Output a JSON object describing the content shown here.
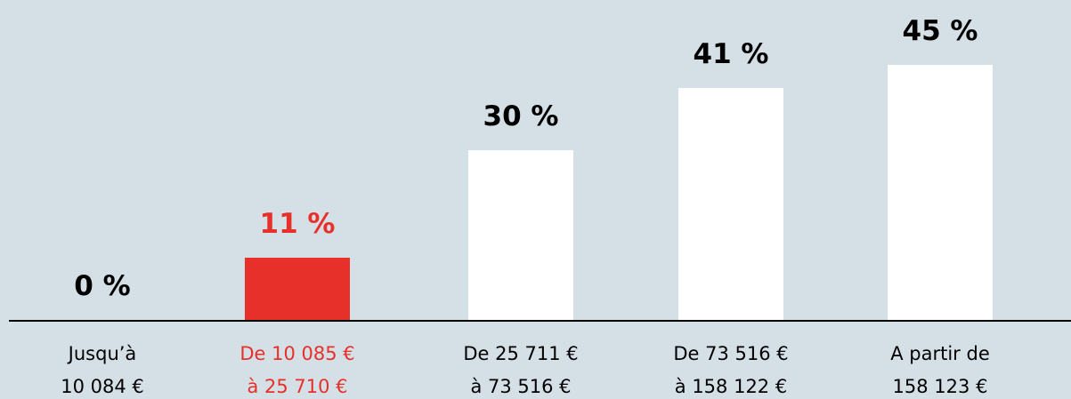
{
  "chart_data": {
    "type": "bar",
    "categories": [
      "Jusqu’à\n10 084 €",
      "De 10 085 €\nà 25 710 €",
      "De 25 711 €\nà 73 516 €",
      "De 73 516 €\nà 158 122 €",
      "A partir de\n158 123 €"
    ],
    "values": [
      0,
      11,
      30,
      41,
      45
    ],
    "value_labels": [
      "0 %",
      "11 %",
      "30 %",
      "41 %",
      "45 %"
    ],
    "colors": [
      "#ffffff",
      "#e8302a",
      "#ffffff",
      "#ffffff",
      "#ffffff"
    ],
    "label_colors": [
      "#000000",
      "#e8302a",
      "#000000",
      "#000000",
      "#000000"
    ]
  }
}
